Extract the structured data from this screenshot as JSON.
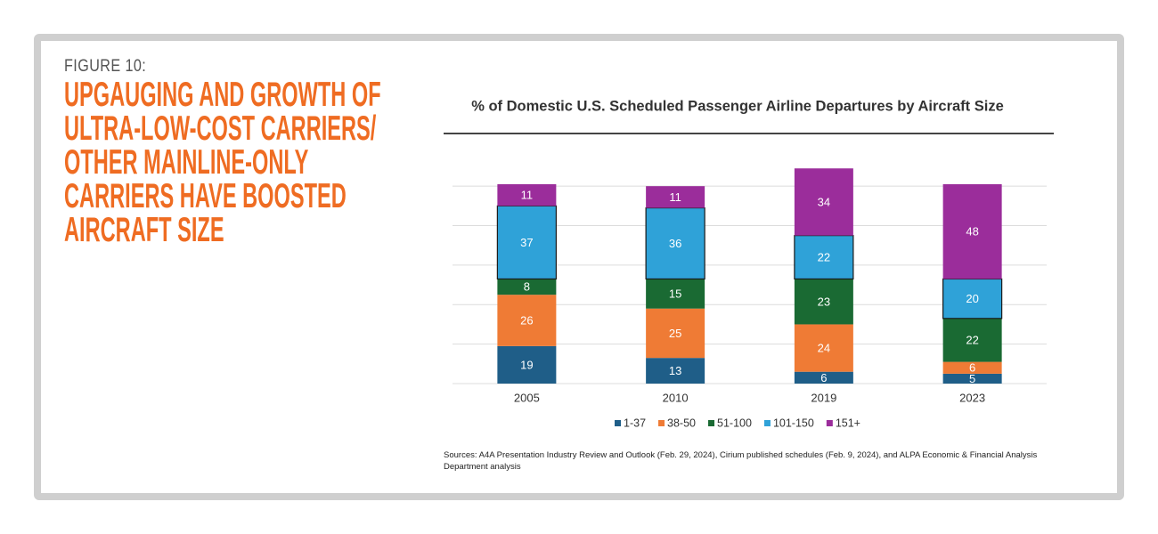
{
  "figure_label": "FIGURE 10:",
  "figure_title_lines": [
    "UPGAUGING AND GROWTH OF",
    "ULTRA-LOW-COST CARRIERS/",
    "OTHER MAINLINE-ONLY",
    "CARRIERS HAVE BOOSTED",
    "AIRCRAFT SIZE"
  ],
  "sources": "Sources: A4A Presentation Industry Review and Outlook (Feb. 29, 2024), Cirium published schedules (Feb. 9, 2024), and ALPA Economic & Financial Analysis Department analysis",
  "chart_data": {
    "type": "stacked_bar",
    "title": "% of Domestic U.S. Scheduled Passenger Airline Departures by Aircraft Size",
    "categories": [
      "2005",
      "2010",
      "2019",
      "2023"
    ],
    "series": [
      {
        "name": "1-37",
        "color": "#1f5e88",
        "values": [
          19,
          13,
          6,
          5
        ]
      },
      {
        "name": "38-50",
        "color": "#ef7b35",
        "values": [
          26,
          25,
          24,
          6
        ]
      },
      {
        "name": "51-100",
        "color": "#1a6a33",
        "values": [
          8,
          15,
          23,
          22
        ]
      },
      {
        "name": "101-150",
        "color": "#2fa2d8",
        "stroke": "#1a1a1a",
        "values": [
          37,
          36,
          22,
          20
        ]
      },
      {
        "name": "151+",
        "color": "#9b2d9b",
        "values": [
          11,
          11,
          34,
          48
        ]
      }
    ],
    "ylim": [
      0,
      110
    ],
    "yticks": [
      0,
      20,
      40,
      60,
      80,
      100
    ],
    "grid": true,
    "legend": "bottom"
  }
}
